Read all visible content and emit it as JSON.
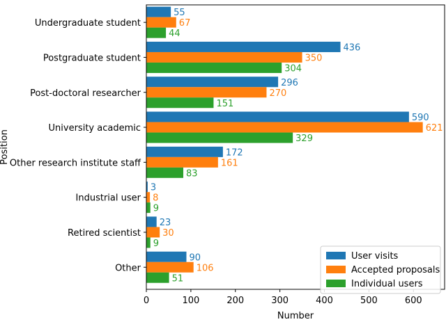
{
  "chart_data": {
    "type": "bar",
    "orientation": "horizontal",
    "categories": [
      "Undergraduate student",
      "Postgraduate student",
      "Post-doctoral researcher",
      "University academic",
      "Other research institute staff",
      "Industrial user",
      "Retired scientist",
      "Other"
    ],
    "series": [
      {
        "name": "User visits",
        "color": "#1f77b4",
        "values": [
          55,
          436,
          296,
          590,
          172,
          3,
          23,
          90
        ]
      },
      {
        "name": "Accepted proposals",
        "color": "#ff7f0e",
        "values": [
          67,
          350,
          270,
          621,
          161,
          8,
          30,
          106
        ]
      },
      {
        "name": "Individual users",
        "color": "#2ca02c",
        "values": [
          44,
          304,
          151,
          329,
          83,
          9,
          9,
          51
        ]
      }
    ],
    "xlabel": "Number",
    "ylabel": "Position",
    "xlim": [
      0,
      670
    ],
    "xticks": [
      0,
      100,
      200,
      300,
      400,
      500,
      600
    ],
    "data_labels": true,
    "legend_position": "lower-right",
    "grid": false
  }
}
